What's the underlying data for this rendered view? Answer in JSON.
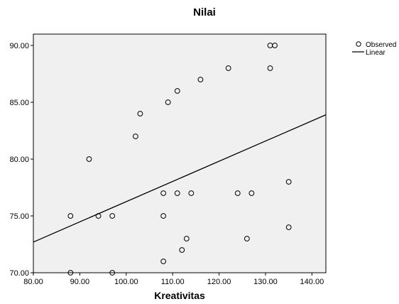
{
  "chart_data": {
    "type": "scatter",
    "title": "Nilai",
    "xlabel": "Kreativitas",
    "ylabel": "",
    "xlim": [
      80,
      143
    ],
    "ylim": [
      70,
      91
    ],
    "x_ticks": [
      "80.00",
      "90.00",
      "100.00",
      "110.00",
      "120.00",
      "130.00",
      "140.00"
    ],
    "y_ticks": [
      "70.00",
      "75.00",
      "80.00",
      "85.00",
      "90.00"
    ],
    "x_tick_values": [
      80,
      90,
      100,
      110,
      120,
      130,
      140
    ],
    "y_tick_values": [
      70,
      75,
      80,
      85,
      90
    ],
    "grid": false,
    "legend_position": "top-right",
    "legend": [
      {
        "label": "Observed",
        "marker": "circle"
      },
      {
        "label": "Linear",
        "marker": "line"
      }
    ],
    "plot_background": "#f0f0f0",
    "series": [
      {
        "name": "Observed",
        "points": [
          {
            "x": 88,
            "y": 70
          },
          {
            "x": 88,
            "y": 75
          },
          {
            "x": 92,
            "y": 80
          },
          {
            "x": 94,
            "y": 75
          },
          {
            "x": 97,
            "y": 75
          },
          {
            "x": 97,
            "y": 70
          },
          {
            "x": 102,
            "y": 82
          },
          {
            "x": 103,
            "y": 84
          },
          {
            "x": 108,
            "y": 77
          },
          {
            "x": 108,
            "y": 75
          },
          {
            "x": 108,
            "y": 71
          },
          {
            "x": 109,
            "y": 85
          },
          {
            "x": 111,
            "y": 86
          },
          {
            "x": 111,
            "y": 77
          },
          {
            "x": 112,
            "y": 72
          },
          {
            "x": 113,
            "y": 73
          },
          {
            "x": 114,
            "y": 77
          },
          {
            "x": 116,
            "y": 87
          },
          {
            "x": 122,
            "y": 88
          },
          {
            "x": 124,
            "y": 77
          },
          {
            "x": 126,
            "y": 73
          },
          {
            "x": 127,
            "y": 77
          },
          {
            "x": 131,
            "y": 90
          },
          {
            "x": 131,
            "y": 88
          },
          {
            "x": 132,
            "y": 90
          },
          {
            "x": 135,
            "y": 78
          },
          {
            "x": 135,
            "y": 74
          }
        ]
      },
      {
        "name": "Linear",
        "line": [
          {
            "x": 80,
            "y": 72.7
          },
          {
            "x": 143,
            "y": 83.9
          }
        ]
      }
    ]
  }
}
